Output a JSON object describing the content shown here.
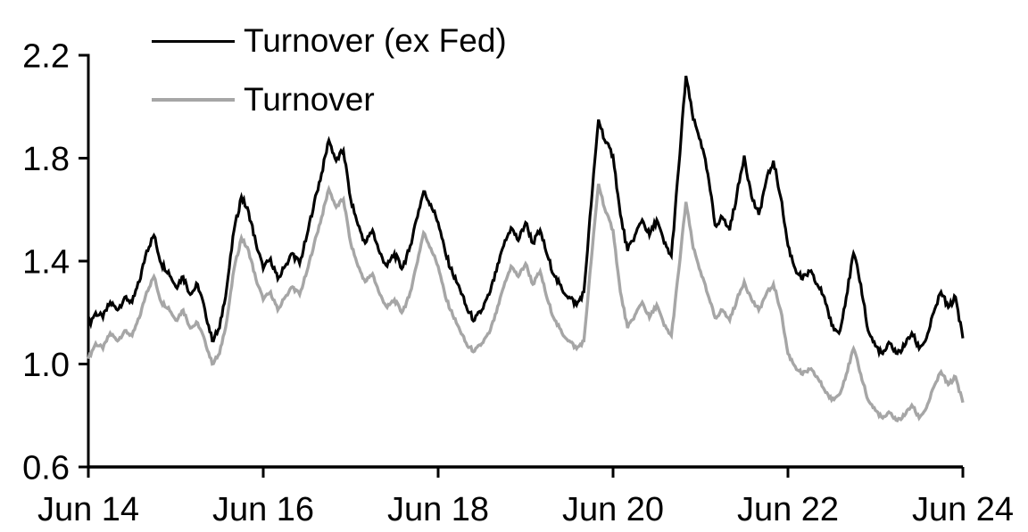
{
  "chart_data": {
    "type": "line",
    "title": "",
    "xlabel": "",
    "ylabel": "",
    "x_unit": "months since Jun 2014",
    "x_step_months": 1,
    "x_range_years": [
      0,
      10
    ],
    "x_axis": {
      "tick_years": [
        0,
        2,
        4,
        6,
        8,
        10
      ],
      "tick_labels": [
        "Jun 14",
        "Jun 16",
        "Jun 18",
        "Jun 20",
        "Jun 22",
        "Jun 24"
      ]
    },
    "y_axis": {
      "range": [
        0.6,
        2.2
      ],
      "ticks": [
        0.6,
        1.0,
        1.4,
        1.8,
        2.2
      ],
      "tick_labels": [
        "0.6",
        "1.0",
        "1.4",
        "1.8",
        "2.2"
      ]
    },
    "grid": false,
    "legend_position": "top-left",
    "series": [
      {
        "name": "Turnover (ex Fed)",
        "color": "#000000",
        "values": [
          1.15,
          1.2,
          1.18,
          1.24,
          1.21,
          1.26,
          1.24,
          1.32,
          1.44,
          1.5,
          1.39,
          1.36,
          1.3,
          1.34,
          1.27,
          1.31,
          1.21,
          1.09,
          1.14,
          1.3,
          1.52,
          1.65,
          1.59,
          1.47,
          1.37,
          1.41,
          1.33,
          1.38,
          1.43,
          1.39,
          1.5,
          1.63,
          1.74,
          1.87,
          1.79,
          1.83,
          1.64,
          1.54,
          1.47,
          1.52,
          1.43,
          1.38,
          1.43,
          1.37,
          1.44,
          1.56,
          1.67,
          1.62,
          1.55,
          1.43,
          1.35,
          1.29,
          1.21,
          1.17,
          1.21,
          1.27,
          1.36,
          1.46,
          1.53,
          1.48,
          1.55,
          1.47,
          1.52,
          1.42,
          1.34,
          1.29,
          1.26,
          1.23,
          1.28,
          1.62,
          1.95,
          1.86,
          1.81,
          1.58,
          1.44,
          1.5,
          1.56,
          1.5,
          1.56,
          1.47,
          1.42,
          1.76,
          2.12,
          1.95,
          1.87,
          1.74,
          1.54,
          1.57,
          1.52,
          1.66,
          1.81,
          1.65,
          1.58,
          1.71,
          1.79,
          1.65,
          1.46,
          1.37,
          1.33,
          1.36,
          1.31,
          1.26,
          1.15,
          1.12,
          1.26,
          1.43,
          1.31,
          1.13,
          1.07,
          1.04,
          1.08,
          1.04,
          1.07,
          1.12,
          1.06,
          1.1,
          1.2,
          1.28,
          1.22,
          1.26,
          1.1
        ]
      },
      {
        "name": "Turnover",
        "color": "#a6a6a6",
        "values": [
          1.02,
          1.08,
          1.06,
          1.12,
          1.09,
          1.13,
          1.11,
          1.18,
          1.28,
          1.34,
          1.24,
          1.22,
          1.17,
          1.21,
          1.14,
          1.16,
          1.09,
          1.0,
          1.04,
          1.17,
          1.37,
          1.49,
          1.44,
          1.33,
          1.25,
          1.28,
          1.21,
          1.26,
          1.3,
          1.27,
          1.36,
          1.47,
          1.57,
          1.68,
          1.61,
          1.64,
          1.47,
          1.38,
          1.32,
          1.35,
          1.27,
          1.22,
          1.25,
          1.2,
          1.26,
          1.38,
          1.51,
          1.45,
          1.38,
          1.26,
          1.19,
          1.13,
          1.07,
          1.05,
          1.08,
          1.12,
          1.2,
          1.3,
          1.38,
          1.34,
          1.39,
          1.31,
          1.36,
          1.25,
          1.17,
          1.12,
          1.09,
          1.06,
          1.09,
          1.4,
          1.7,
          1.59,
          1.52,
          1.28,
          1.14,
          1.19,
          1.24,
          1.18,
          1.23,
          1.15,
          1.11,
          1.36,
          1.63,
          1.45,
          1.36,
          1.27,
          1.18,
          1.21,
          1.17,
          1.25,
          1.32,
          1.25,
          1.21,
          1.27,
          1.31,
          1.21,
          1.04,
          0.99,
          0.96,
          0.98,
          0.95,
          0.9,
          0.86,
          0.88,
          0.96,
          1.06,
          0.96,
          0.86,
          0.82,
          0.79,
          0.81,
          0.78,
          0.8,
          0.84,
          0.79,
          0.83,
          0.91,
          0.97,
          0.92,
          0.95,
          0.85
        ]
      }
    ]
  },
  "legend": {
    "items": [
      {
        "label": "Turnover (ex Fed)",
        "color": "#000000"
      },
      {
        "label": "Turnover",
        "color": "#a6a6a6"
      }
    ]
  },
  "colors": {
    "background": "#ffffff",
    "axis": "#000000",
    "series_ex_fed": "#000000",
    "series_turnover": "#a6a6a6"
  }
}
